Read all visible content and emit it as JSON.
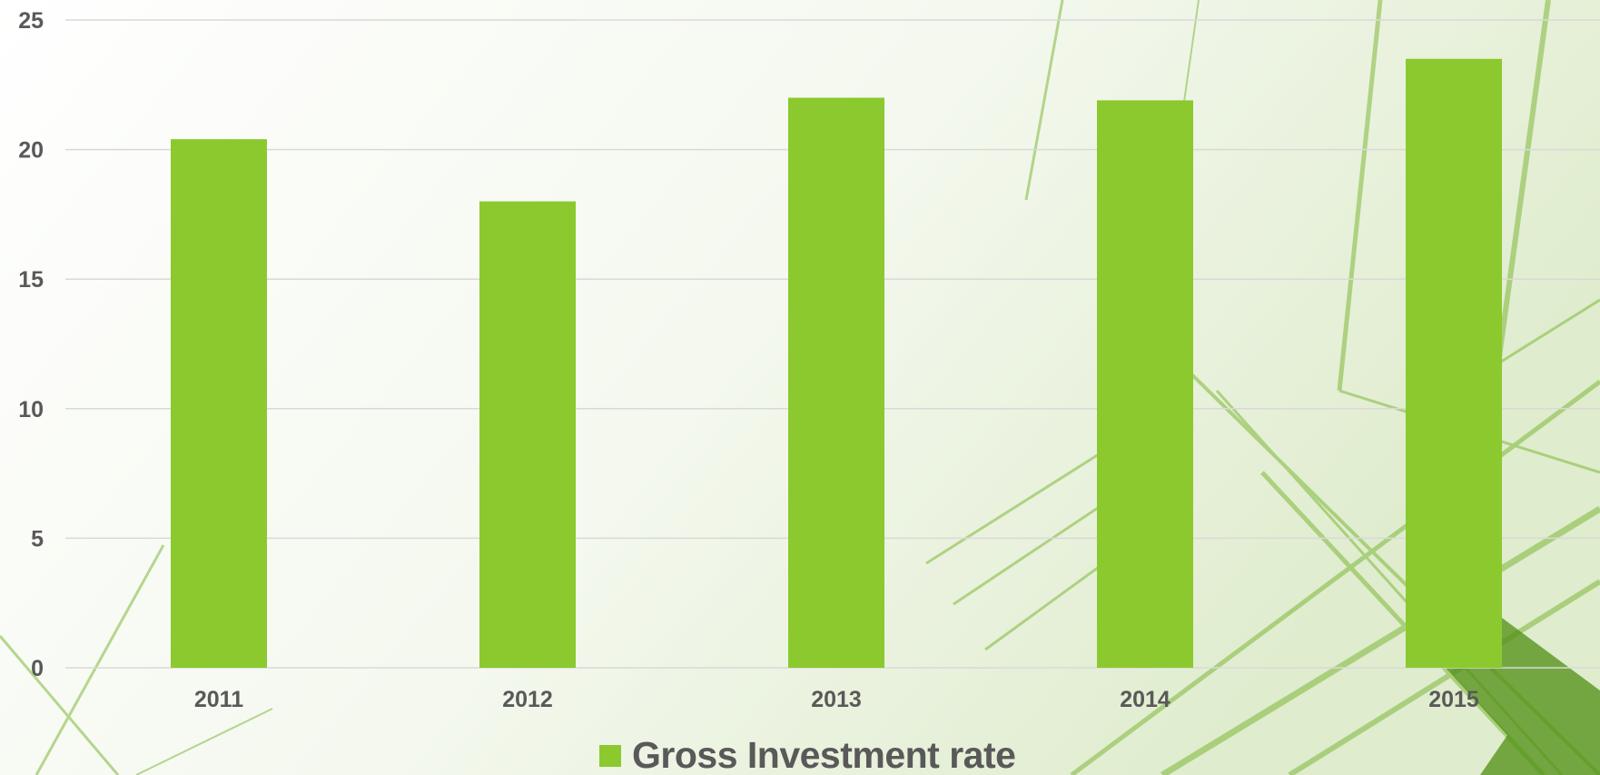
{
  "chart_data": {
    "type": "bar",
    "categories": [
      "2011",
      "2012",
      "2013",
      "2014",
      "2015"
    ],
    "series": [
      {
        "name": "Gross Investment rate",
        "values": [
          20.4,
          18.0,
          22.0,
          21.9,
          23.5
        ]
      }
    ],
    "ylim": [
      0,
      25
    ],
    "yticks": [
      0,
      5,
      10,
      15,
      20,
      25
    ],
    "grid": true,
    "legend_position": "bottom"
  },
  "colors": {
    "bar": "#8bc92f",
    "gridline": "#d9d9d9",
    "text": "#595959",
    "background_accent": "#5a9a1c"
  }
}
